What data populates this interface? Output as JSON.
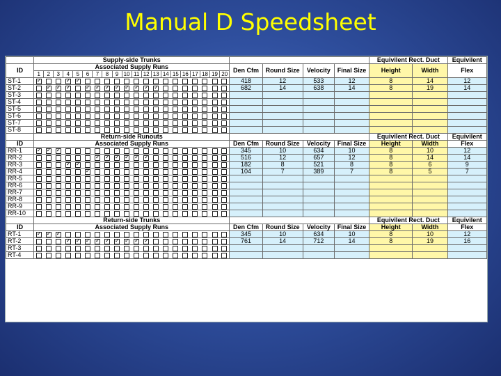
{
  "title": "Manual D Speedsheet",
  "columns": {
    "id": "ID",
    "associated": "Associated Supply Runs",
    "den_cfm": "Den Cfm",
    "round_size": "Round Size",
    "velocity": "Velocity",
    "final_size": "Final Size",
    "height": "Height",
    "width": "Width",
    "flex": "Flex",
    "equiv_rect": "Equivilent Rect. Duct",
    "equiv": "Equivilent",
    "run_numbers": [
      "1",
      "2",
      "3",
      "4",
      "5",
      "6",
      "7",
      "8",
      "9",
      "10",
      "11",
      "12",
      "13",
      "14",
      "15",
      "16",
      "17",
      "18",
      "19",
      "20"
    ]
  },
  "sections": [
    {
      "title": "Supply-side Trunks",
      "rows": [
        {
          "id": "ST-1",
          "checks": [
            1,
            4,
            5
          ],
          "den_cfm": "418",
          "round_size": "12",
          "velocity": "533",
          "final_size": "12",
          "height": "8",
          "width": "14",
          "flex": "12"
        },
        {
          "id": "ST-2",
          "checks": [
            2,
            3,
            4,
            6,
            7,
            8,
            9,
            10,
            11,
            12,
            13
          ],
          "den_cfm": "682",
          "round_size": "14",
          "velocity": "638",
          "final_size": "14",
          "height": "8",
          "width": "19",
          "flex": "14"
        },
        {
          "id": "ST-3",
          "checks": [],
          "den_cfm": "",
          "round_size": "",
          "velocity": "",
          "final_size": "",
          "height": "",
          "width": "",
          "flex": ""
        },
        {
          "id": "ST-4",
          "checks": [],
          "den_cfm": "",
          "round_size": "",
          "velocity": "",
          "final_size": "",
          "height": "",
          "width": "",
          "flex": ""
        },
        {
          "id": "ST-5",
          "checks": [],
          "den_cfm": "",
          "round_size": "",
          "velocity": "",
          "final_size": "",
          "height": "",
          "width": "",
          "flex": ""
        },
        {
          "id": "ST-6",
          "checks": [],
          "den_cfm": "",
          "round_size": "",
          "velocity": "",
          "final_size": "",
          "height": "",
          "width": "",
          "flex": ""
        },
        {
          "id": "ST-7",
          "checks": [],
          "den_cfm": "",
          "round_size": "",
          "velocity": "",
          "final_size": "",
          "height": "",
          "width": "",
          "flex": ""
        },
        {
          "id": "ST-8",
          "checks": [],
          "den_cfm": "",
          "round_size": "",
          "velocity": "",
          "final_size": "",
          "height": "",
          "width": "",
          "flex": ""
        }
      ]
    },
    {
      "title": "Return-side Runouts",
      "rows": [
        {
          "id": "RR-1",
          "checks": [
            1,
            2,
            3
          ],
          "den_cfm": "345",
          "round_size": "10",
          "velocity": "634",
          "final_size": "10",
          "height": "8",
          "width": "10",
          "flex": "12"
        },
        {
          "id": "RR-2",
          "checks": [
            7,
            8,
            9,
            10,
            11,
            12
          ],
          "den_cfm": "516",
          "round_size": "12",
          "velocity": "657",
          "final_size": "12",
          "height": "8",
          "width": "14",
          "flex": "14"
        },
        {
          "id": "RR-3",
          "checks": [
            4,
            5
          ],
          "den_cfm": "182",
          "round_size": "8",
          "velocity": "521",
          "final_size": "8",
          "height": "8",
          "width": "6",
          "flex": "9"
        },
        {
          "id": "RR-4",
          "checks": [
            6
          ],
          "den_cfm": "104",
          "round_size": "7",
          "velocity": "389",
          "final_size": "7",
          "height": "8",
          "width": "5",
          "flex": "7"
        },
        {
          "id": "RR-5",
          "checks": [],
          "den_cfm": "",
          "round_size": "",
          "velocity": "",
          "final_size": "",
          "height": "",
          "width": "",
          "flex": ""
        },
        {
          "id": "RR-6",
          "checks": [],
          "den_cfm": "",
          "round_size": "",
          "velocity": "",
          "final_size": "",
          "height": "",
          "width": "",
          "flex": ""
        },
        {
          "id": "RR-7",
          "checks": [],
          "den_cfm": "",
          "round_size": "",
          "velocity": "",
          "final_size": "",
          "height": "",
          "width": "",
          "flex": ""
        },
        {
          "id": "RR-8",
          "checks": [],
          "den_cfm": "",
          "round_size": "",
          "velocity": "",
          "final_size": "",
          "height": "",
          "width": "",
          "flex": ""
        },
        {
          "id": "RR-9",
          "checks": [],
          "den_cfm": "",
          "round_size": "",
          "velocity": "",
          "final_size": "",
          "height": "",
          "width": "",
          "flex": ""
        },
        {
          "id": "RR-10",
          "checks": [],
          "den_cfm": "",
          "round_size": "",
          "velocity": "",
          "final_size": "",
          "height": "",
          "width": "",
          "flex": ""
        }
      ]
    },
    {
      "title": "Return-side Trunks",
      "rows": [
        {
          "id": "RT-1",
          "checks": [
            1,
            2,
            3
          ],
          "den_cfm": "345",
          "round_size": "10",
          "velocity": "634",
          "final_size": "10",
          "height": "8",
          "width": "10",
          "flex": "12"
        },
        {
          "id": "RT-2",
          "checks": [
            4,
            5,
            6,
            7,
            8,
            9,
            10,
            11,
            12
          ],
          "den_cfm": "761",
          "round_size": "14",
          "velocity": "712",
          "final_size": "14",
          "height": "8",
          "width": "19",
          "flex": "16"
        },
        {
          "id": "RT-3",
          "checks": [],
          "den_cfm": "",
          "round_size": "",
          "velocity": "",
          "final_size": "",
          "height": "",
          "width": "",
          "flex": ""
        },
        {
          "id": "RT-4",
          "checks": [],
          "den_cfm": "",
          "round_size": "",
          "velocity": "",
          "final_size": "",
          "height": "",
          "width": "",
          "flex": ""
        }
      ]
    }
  ]
}
